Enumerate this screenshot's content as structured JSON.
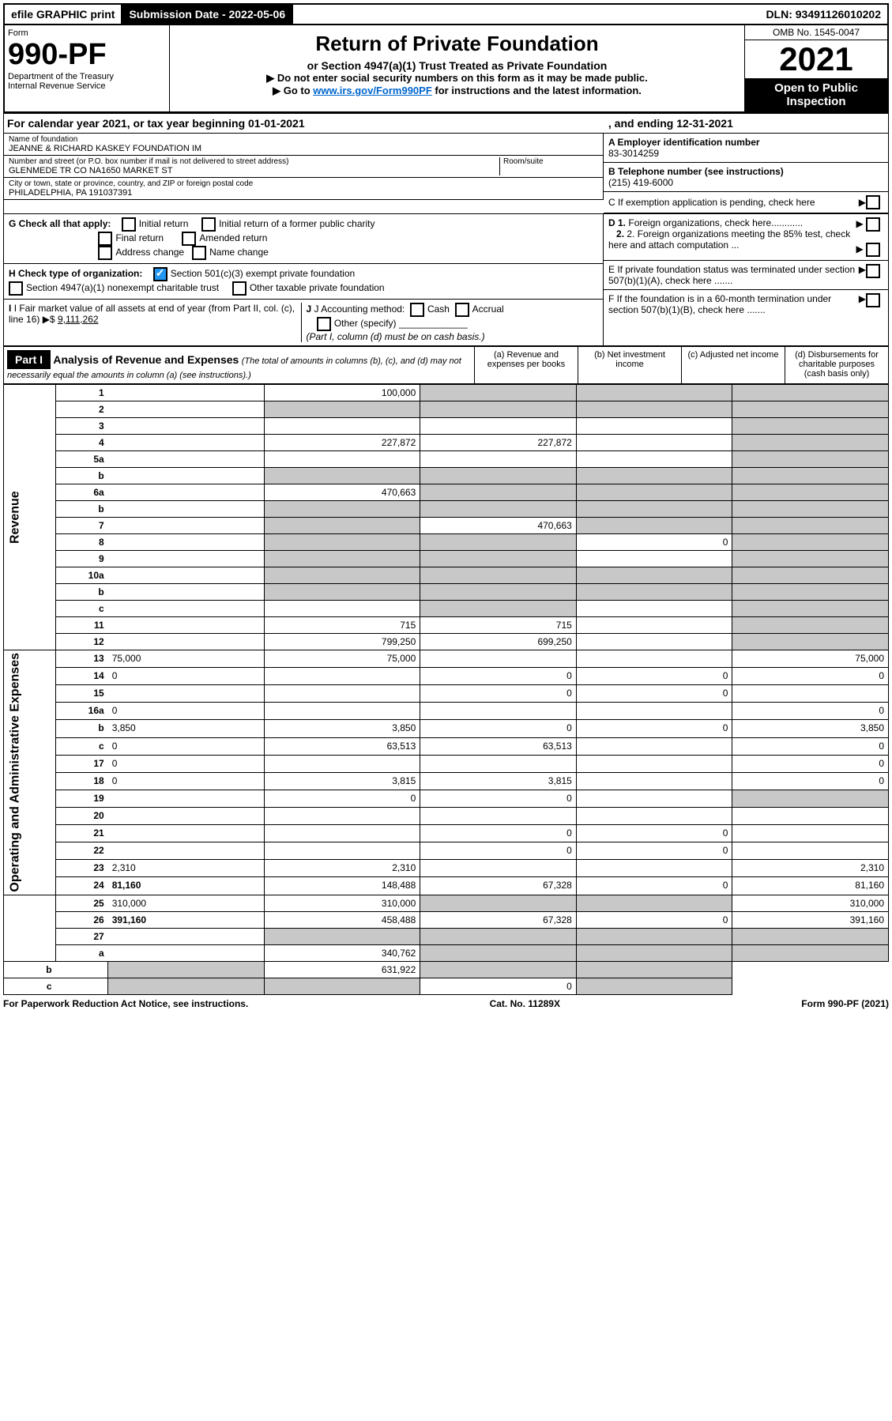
{
  "top_bar": {
    "efile": "efile GRAPHIC print",
    "submission_label": "Submission Date - 2022-05-06",
    "dln": "DLN: 93491126010202"
  },
  "header": {
    "form_label": "Form",
    "form_no": "990-PF",
    "dept1": "Department of the Treasury",
    "dept2": "Internal Revenue Service",
    "title": "Return of Private Foundation",
    "subtitle": "or Section 4947(a)(1) Trust Treated as Private Foundation",
    "instr1": "▶ Do not enter social security numbers on this form as it may be made public.",
    "instr2_pre": "▶ Go to ",
    "instr2_link": "www.irs.gov/Form990PF",
    "instr2_post": " for instructions and the latest information.",
    "omb": "OMB No. 1545-0047",
    "year": "2021",
    "open": "Open to Public Inspection"
  },
  "calendar": {
    "text": "For calendar year 2021, or tax year beginning 01-01-2021",
    "ending": ", and ending 12-31-2021"
  },
  "entity": {
    "name_label": "Name of foundation",
    "name": "JEANNE & RICHARD KASKEY FOUNDATION IM",
    "addr_label": "Number and street (or P.O. box number if mail is not delivered to street address)",
    "addr": "GLENMEDE TR CO NA1650 MARKET ST",
    "room_label": "Room/suite",
    "city_label": "City or town, state or province, country, and ZIP or foreign postal code",
    "city": "PHILADELPHIA, PA  191037391",
    "a_label": "A Employer identification number",
    "a_val": "83-3014259",
    "b_label": "B Telephone number (see instructions)",
    "b_val": "(215) 419-6000",
    "c_label": "C If exemption application is pending, check here",
    "d1": "D 1. Foreign organizations, check here............",
    "d2": "2. Foreign organizations meeting the 85% test, check here and attach computation ...",
    "e": "E  If private foundation status was terminated under section 507(b)(1)(A), check here .......",
    "f": "F  If the foundation is in a 60-month termination under section 507(b)(1)(B), check here .......",
    "g_label": "G Check all that apply:",
    "g_opts": [
      "Initial return",
      "Initial return of a former public charity",
      "Final return",
      "Amended return",
      "Address change",
      "Name change"
    ],
    "h_label": "H Check type of organization:",
    "h_opt1": "Section 501(c)(3) exempt private foundation",
    "h_opt2": "Section 4947(a)(1) nonexempt charitable trust",
    "h_opt3": "Other taxable private foundation",
    "i_label": "I Fair market value of all assets at end of year (from Part II, col. (c), line 16)",
    "i_val": "9,111,262",
    "j_label": "J Accounting method:",
    "j_cash": "Cash",
    "j_accrual": "Accrual",
    "j_other": "Other (specify)",
    "j_note": "(Part I, column (d) must be on cash basis.)"
  },
  "part1": {
    "label": "Part I",
    "title": "Analysis of Revenue and Expenses",
    "sub": "(The total of amounts in columns (b), (c), and (d) may not necessarily equal the amounts in column (a) (see instructions).)",
    "col_a": "(a) Revenue and expenses per books",
    "col_b": "(b) Net investment income",
    "col_c": "(c) Adjusted net income",
    "col_d": "(d) Disbursements for charitable purposes (cash basis only)",
    "side_rev": "Revenue",
    "side_exp": "Operating and Administrative Expenses"
  },
  "lines": [
    {
      "n": "1",
      "d": "",
      "a": "100,000",
      "b": "",
      "c": "",
      "ga": false,
      "gb": true,
      "gc": true,
      "gd": true
    },
    {
      "n": "2",
      "d": "",
      "a": "",
      "b": "",
      "c": "",
      "ga": true,
      "gb": true,
      "gc": true,
      "gd": true
    },
    {
      "n": "3",
      "d": "",
      "a": "",
      "b": "",
      "c": "",
      "ga": false,
      "gb": false,
      "gc": false,
      "gd": true
    },
    {
      "n": "4",
      "d": "",
      "a": "227,872",
      "b": "227,872",
      "c": "",
      "ga": false,
      "gb": false,
      "gc": false,
      "gd": true
    },
    {
      "n": "5a",
      "d": "",
      "a": "",
      "b": "",
      "c": "",
      "ga": false,
      "gb": false,
      "gc": false,
      "gd": true
    },
    {
      "n": "b",
      "d": "",
      "a": "",
      "b": "",
      "c": "",
      "ga": true,
      "gb": true,
      "gc": true,
      "gd": true
    },
    {
      "n": "6a",
      "d": "",
      "a": "470,663",
      "b": "",
      "c": "",
      "ga": false,
      "gb": true,
      "gc": true,
      "gd": true
    },
    {
      "n": "b",
      "d": "",
      "a": "",
      "b": "",
      "c": "",
      "ga": true,
      "gb": true,
      "gc": true,
      "gd": true
    },
    {
      "n": "7",
      "d": "",
      "a": "",
      "b": "470,663",
      "c": "",
      "ga": true,
      "gb": false,
      "gc": true,
      "gd": true
    },
    {
      "n": "8",
      "d": "",
      "a": "",
      "b": "",
      "c": "0",
      "ga": true,
      "gb": true,
      "gc": false,
      "gd": true
    },
    {
      "n": "9",
      "d": "",
      "a": "",
      "b": "",
      "c": "",
      "ga": true,
      "gb": true,
      "gc": false,
      "gd": true
    },
    {
      "n": "10a",
      "d": "",
      "a": "",
      "b": "",
      "c": "",
      "ga": true,
      "gb": true,
      "gc": true,
      "gd": true
    },
    {
      "n": "b",
      "d": "",
      "a": "",
      "b": "",
      "c": "",
      "ga": true,
      "gb": true,
      "gc": true,
      "gd": true
    },
    {
      "n": "c",
      "d": "",
      "a": "",
      "b": "",
      "c": "",
      "ga": false,
      "gb": true,
      "gc": false,
      "gd": true
    },
    {
      "n": "11",
      "d": "",
      "a": "715",
      "b": "715",
      "c": "",
      "ga": false,
      "gb": false,
      "gc": false,
      "gd": true
    },
    {
      "n": "12",
      "d": "",
      "a": "799,250",
      "b": "699,250",
      "c": "",
      "ga": false,
      "gb": false,
      "gc": false,
      "gd": true,
      "bold": true
    },
    {
      "n": "13",
      "d": "75,000",
      "a": "75,000",
      "b": "",
      "c": "",
      "ga": false,
      "gb": false,
      "gc": false,
      "gd": false
    },
    {
      "n": "14",
      "d": "0",
      "a": "",
      "b": "0",
      "c": "0",
      "ga": false,
      "gb": false,
      "gc": false,
      "gd": false
    },
    {
      "n": "15",
      "d": "",
      "a": "",
      "b": "0",
      "c": "0",
      "ga": false,
      "gb": false,
      "gc": false,
      "gd": false
    },
    {
      "n": "16a",
      "d": "0",
      "a": "",
      "b": "",
      "c": "",
      "ga": false,
      "gb": false,
      "gc": false,
      "gd": false
    },
    {
      "n": "b",
      "d": "3,850",
      "a": "3,850",
      "b": "0",
      "c": "0",
      "ga": false,
      "gb": false,
      "gc": false,
      "gd": false
    },
    {
      "n": "c",
      "d": "0",
      "a": "63,513",
      "b": "63,513",
      "c": "",
      "ga": false,
      "gb": false,
      "gc": false,
      "gd": false
    },
    {
      "n": "17",
      "d": "0",
      "a": "",
      "b": "",
      "c": "",
      "ga": false,
      "gb": false,
      "gc": false,
      "gd": false
    },
    {
      "n": "18",
      "d": "0",
      "a": "3,815",
      "b": "3,815",
      "c": "",
      "ga": false,
      "gb": false,
      "gc": false,
      "gd": false
    },
    {
      "n": "19",
      "d": "",
      "a": "0",
      "b": "0",
      "c": "",
      "ga": false,
      "gb": false,
      "gc": false,
      "gd": true
    },
    {
      "n": "20",
      "d": "",
      "a": "",
      "b": "",
      "c": "",
      "ga": false,
      "gb": false,
      "gc": false,
      "gd": false
    },
    {
      "n": "21",
      "d": "",
      "a": "",
      "b": "0",
      "c": "0",
      "ga": false,
      "gb": false,
      "gc": false,
      "gd": false
    },
    {
      "n": "22",
      "d": "",
      "a": "",
      "b": "0",
      "c": "0",
      "ga": false,
      "gb": false,
      "gc": false,
      "gd": false
    },
    {
      "n": "23",
      "d": "2,310",
      "a": "2,310",
      "b": "",
      "c": "",
      "ga": false,
      "gb": false,
      "gc": false,
      "gd": false
    },
    {
      "n": "24",
      "d": "81,160",
      "a": "148,488",
      "b": "67,328",
      "c": "0",
      "ga": false,
      "gb": false,
      "gc": false,
      "gd": false,
      "bold": true
    },
    {
      "n": "25",
      "d": "310,000",
      "a": "310,000",
      "b": "",
      "c": "",
      "ga": false,
      "gb": true,
      "gc": true,
      "gd": false
    },
    {
      "n": "26",
      "d": "391,160",
      "a": "458,488",
      "b": "67,328",
      "c": "0",
      "ga": false,
      "gb": false,
      "gc": false,
      "gd": false,
      "bold": true
    },
    {
      "n": "27",
      "d": "",
      "a": "",
      "b": "",
      "c": "",
      "ga": true,
      "gb": true,
      "gc": true,
      "gd": true
    },
    {
      "n": "a",
      "d": "",
      "a": "340,762",
      "b": "",
      "c": "",
      "ga": false,
      "gb": true,
      "gc": true,
      "gd": true,
      "bold": true
    },
    {
      "n": "b",
      "d": "",
      "a": "",
      "b": "631,922",
      "c": "",
      "ga": true,
      "gb": false,
      "gc": true,
      "gd": true,
      "bold": true
    },
    {
      "n": "c",
      "d": "",
      "a": "",
      "b": "",
      "c": "0",
      "ga": true,
      "gb": true,
      "gc": false,
      "gd": true,
      "bold": true
    }
  ],
  "footer": {
    "left": "For Paperwork Reduction Act Notice, see instructions.",
    "mid": "Cat. No. 11289X",
    "right": "Form 990-PF (2021)"
  }
}
